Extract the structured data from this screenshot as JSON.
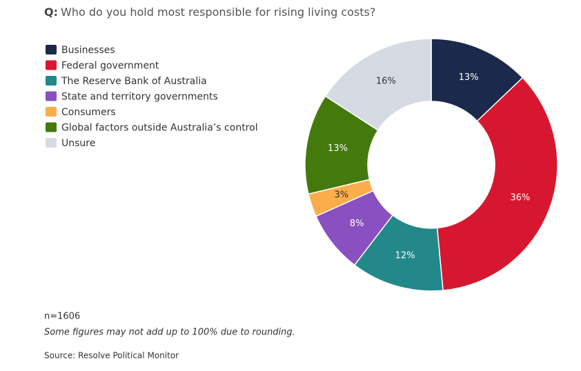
{
  "chart_data": {
    "type": "donut",
    "question_label": "Q:",
    "title": "Who do you hold most responsible for rising living costs?",
    "categories": [
      "Businesses",
      "Federal government",
      "The Reserve Bank of Australia",
      "State and territory governments",
      "Consumers",
      "Global factors outside Australia’s control",
      "Unsure"
    ],
    "values": [
      13,
      36,
      12,
      8,
      3,
      13,
      16
    ],
    "value_labels": [
      "13%",
      "36%",
      "12%",
      "8%",
      "3%",
      "13%",
      "16%"
    ],
    "colors": [
      "#1b2a4a",
      "#d7172f",
      "#23888a",
      "#8a4fc0",
      "#fbad4b",
      "#437a0b",
      "#d6dbe3"
    ],
    "legend": "top-left",
    "sample_size": "n=1606",
    "note": "Some figures may not add up to 100% due to rounding.",
    "source": "Source: Resolve Political Monitor"
  }
}
